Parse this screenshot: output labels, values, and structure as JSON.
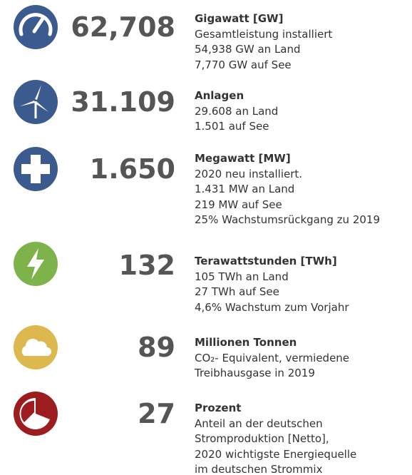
{
  "items": [
    {
      "number": "62,708",
      "heading": "Gigawatt [GW]",
      "lines": [
        "Gesamtleistung installiert",
        "54,938 GW an Land",
        "7,770 GW auf See"
      ]
    },
    {
      "number": "31.109",
      "heading": "Anlagen",
      "lines": [
        "29.608 an Land",
        "1.501 auf See"
      ]
    },
    {
      "number": "1.650",
      "heading": "Megawatt [MW]",
      "lines": [
        "2020 neu installiert.",
        "1.431 MW an Land",
        "219 MW auf See",
        "25% Wachstumsrückgang zu 2019"
      ]
    },
    {
      "number": "132",
      "heading": "Terawattstunden [TWh]",
      "lines": [
        "105 TWh an Land",
        "27 TWh auf See",
        "4,6% Wachstum zum Vorjahr"
      ]
    },
    {
      "number": "89",
      "heading": "Millionen Tonnen",
      "lines": [
        "CO₂- Equivalent, vermiedene",
        "Treibhausgase in 2019"
      ]
    },
    {
      "number": "27",
      "heading": "Prozent",
      "lines": [
        "Anteil an der deutschen",
        "Stromproduktion [Netto],",
        "2020 wichtigste Energiequelle",
        "im deutschen Strommix"
      ]
    }
  ]
}
